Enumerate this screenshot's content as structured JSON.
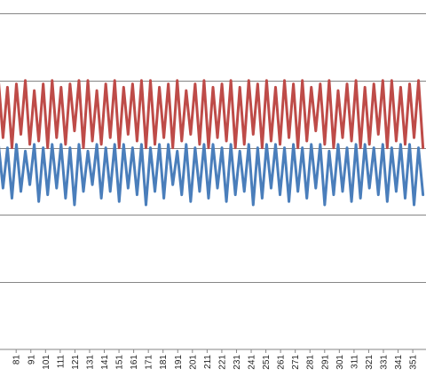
{
  "chart_data": {
    "type": "line",
    "title": "",
    "xlabel": "",
    "ylabel": "",
    "grid": true,
    "legend": "none",
    "x_range": [
      70,
      360
    ],
    "x_tick_labels": [
      "81",
      "91",
      "101",
      "111",
      "121",
      "131",
      "141",
      "151",
      "161",
      "171",
      "181",
      "191",
      "201",
      "211",
      "221",
      "231",
      "241",
      "251",
      "261",
      "271",
      "281",
      "291",
      "301",
      "311",
      "321",
      "331",
      "341",
      "351"
    ],
    "x_tick_values": [
      81,
      91,
      101,
      111,
      121,
      131,
      141,
      151,
      161,
      171,
      181,
      191,
      201,
      211,
      221,
      231,
      241,
      251,
      261,
      271,
      281,
      291,
      301,
      311,
      321,
      331,
      341,
      351
    ],
    "series": [
      {
        "color": "#be4b48",
        "mean": 0.75,
        "peaks": [
          0.8,
          0.78,
          0.79,
          0.8,
          0.77,
          0.79,
          0.8,
          0.78,
          0.79,
          0.8,
          0.8,
          0.77,
          0.79,
          0.8,
          0.78,
          0.79,
          0.8,
          0.8,
          0.78,
          0.79,
          0.8,
          0.77,
          0.79,
          0.8,
          0.78,
          0.79,
          0.8,
          0.78,
          0.8,
          0.79,
          0.8,
          0.78,
          0.8,
          0.79,
          0.8,
          0.78,
          0.79,
          0.8,
          0.77,
          0.79,
          0.8,
          0.78,
          0.79,
          0.8,
          0.8,
          0.78,
          0.79,
          0.8
        ],
        "troughs": [
          0.63,
          0.6,
          0.64,
          0.61,
          0.62,
          0.6,
          0.63,
          0.61,
          0.65,
          0.6,
          0.62,
          0.61,
          0.63,
          0.6,
          0.64,
          0.62,
          0.6,
          0.61,
          0.63,
          0.6,
          0.62,
          0.64,
          0.61,
          0.6,
          0.63,
          0.62,
          0.6,
          0.61,
          0.64,
          0.6,
          0.62,
          0.61,
          0.63,
          0.6,
          0.62,
          0.65,
          0.61,
          0.6,
          0.63,
          0.62,
          0.6,
          0.61,
          0.64,
          0.6,
          0.62,
          0.61,
          0.63,
          0.6
        ]
      },
      {
        "color": "#4a7ebb",
        "mean": 0.58,
        "peaks": [
          0.61,
          0.6,
          0.61,
          0.59,
          0.61,
          0.6,
          0.61,
          0.61,
          0.6,
          0.61,
          0.59,
          0.61,
          0.6,
          0.61,
          0.61,
          0.6,
          0.61,
          0.6,
          0.61,
          0.61,
          0.59,
          0.61,
          0.6,
          0.61,
          0.61,
          0.6,
          0.61,
          0.59,
          0.61,
          0.6,
          0.61,
          0.61,
          0.6,
          0.61,
          0.6,
          0.61,
          0.61,
          0.59,
          0.61,
          0.6,
          0.61,
          0.61,
          0.6,
          0.61,
          0.6,
          0.61,
          0.61,
          0.6
        ],
        "troughs": [
          0.48,
          0.45,
          0.47,
          0.49,
          0.44,
          0.46,
          0.48,
          0.45,
          0.43,
          0.47,
          0.49,
          0.45,
          0.47,
          0.44,
          0.48,
          0.46,
          0.43,
          0.47,
          0.45,
          0.49,
          0.46,
          0.44,
          0.47,
          0.45,
          0.48,
          0.44,
          0.46,
          0.47,
          0.43,
          0.45,
          0.48,
          0.46,
          0.44,
          0.47,
          0.45,
          0.48,
          0.43,
          0.46,
          0.47,
          0.44,
          0.45,
          0.48,
          0.46,
          0.44,
          0.47,
          0.45,
          0.43,
          0.46
        ]
      }
    ]
  }
}
